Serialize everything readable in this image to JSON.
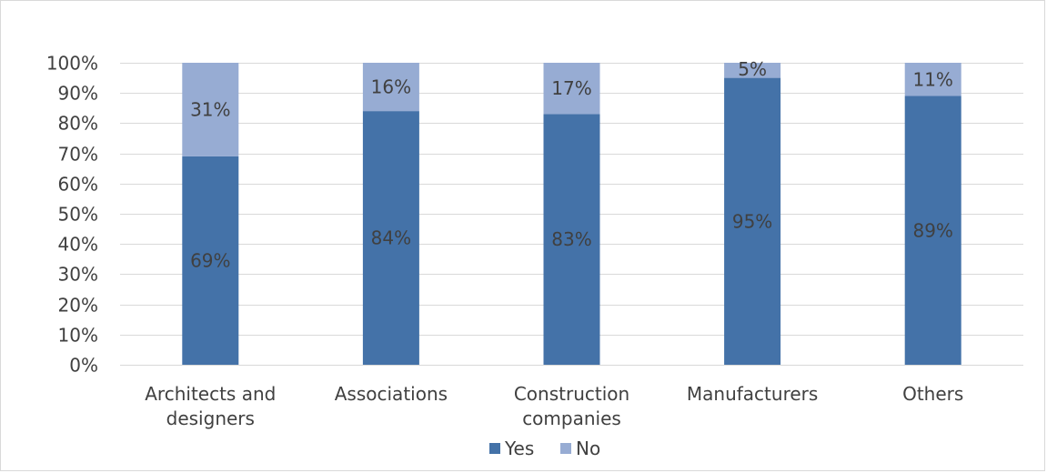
{
  "chart_data": {
    "type": "bar",
    "stacked": true,
    "percent_stacked": true,
    "categories": [
      [
        "Architects and",
        "designers"
      ],
      [
        "Associations"
      ],
      [
        "Construction",
        "companies"
      ],
      [
        "Manufacturers"
      ],
      [
        "Others"
      ]
    ],
    "series": [
      {
        "name": "Yes",
        "values": [
          69,
          84,
          83,
          95,
          89
        ],
        "labels": [
          "69%",
          "84%",
          "83%",
          "95%",
          "89%"
        ],
        "color": "#4472a8"
      },
      {
        "name": "No",
        "values": [
          31,
          16,
          17,
          5,
          11
        ],
        "labels": [
          "31%",
          "16%",
          "17%",
          "5%",
          "11%"
        ],
        "color": "#97acd3"
      }
    ],
    "yticks": [
      "0%",
      "10%",
      "20%",
      "30%",
      "40%",
      "50%",
      "60%",
      "70%",
      "80%",
      "90%",
      "100%"
    ],
    "ylim": [
      0,
      100
    ],
    "grid": true,
    "legend_position": "bottom"
  }
}
